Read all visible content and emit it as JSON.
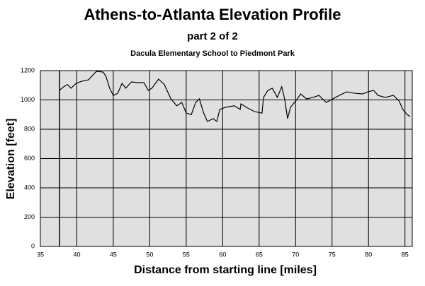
{
  "chart_data": {
    "type": "line",
    "title": "Athens-to-Atlanta Elevation Profile",
    "subtitle": "part 2 of 2",
    "caption": "Dacula Elementary School to Piedmont Park",
    "xlabel": "Distance from starting line [miles]",
    "ylabel": "Elevation [feet]",
    "x": [
      37.6,
      38.2,
      38.7,
      39.2,
      39.9,
      40.7,
      41.6,
      42.3,
      42.7,
      43.6,
      44.0,
      44.5,
      45.0,
      45.6,
      46.2,
      46.7,
      47.5,
      48.4,
      49.2,
      49.8,
      50.3,
      51.2,
      52.0,
      52.9,
      53.7,
      54.4,
      55.0,
      55.7,
      56.3,
      56.8,
      57.4,
      57.9,
      58.7,
      59.2,
      59.6,
      60.4,
      61.6,
      62.4,
      62.5,
      63.4,
      64.4,
      65.4,
      65.6,
      66.2,
      66.8,
      67.5,
      68.1,
      68.5,
      68.9,
      69.3,
      70.1,
      70.7,
      71.5,
      72.4,
      73.2,
      74.2,
      75.1,
      76.0,
      77.0,
      78.0,
      79.2,
      79.9,
      80.7,
      81.3,
      82.3,
      83.4,
      84.2,
      84.7,
      85.3,
      85.7
    ],
    "series": [
      {
        "name": "Elevation",
        "color": "#000000",
        "values": [
          1065,
          1090,
          1105,
          1080,
          1113,
          1128,
          1137,
          1175,
          1195,
          1190,
          1160,
          1080,
          1030,
          1045,
          1113,
          1080,
          1123,
          1118,
          1118,
          1065,
          1080,
          1142,
          1105,
          1007,
          960,
          983,
          910,
          900,
          983,
          1007,
          910,
          853,
          872,
          853,
          935,
          950,
          960,
          935,
          973,
          945,
          920,
          910,
          1017,
          1065,
          1080,
          1017,
          1090,
          1007,
          872,
          950,
          998,
          1041,
          1007,
          1017,
          1031,
          983,
          1007,
          1031,
          1055,
          1046,
          1041,
          1055,
          1065,
          1031,
          1017,
          1031,
          993,
          935,
          900,
          887
        ]
      }
    ],
    "xlim": [
      35,
      86
    ],
    "xticks": [
      35,
      40,
      45,
      50,
      55,
      60,
      65,
      70,
      75,
      80,
      85
    ],
    "ylim": [
      0,
      1200
    ],
    "yticks": [
      0,
      200,
      400,
      600,
      800,
      1000,
      1200
    ],
    "grid": true
  }
}
